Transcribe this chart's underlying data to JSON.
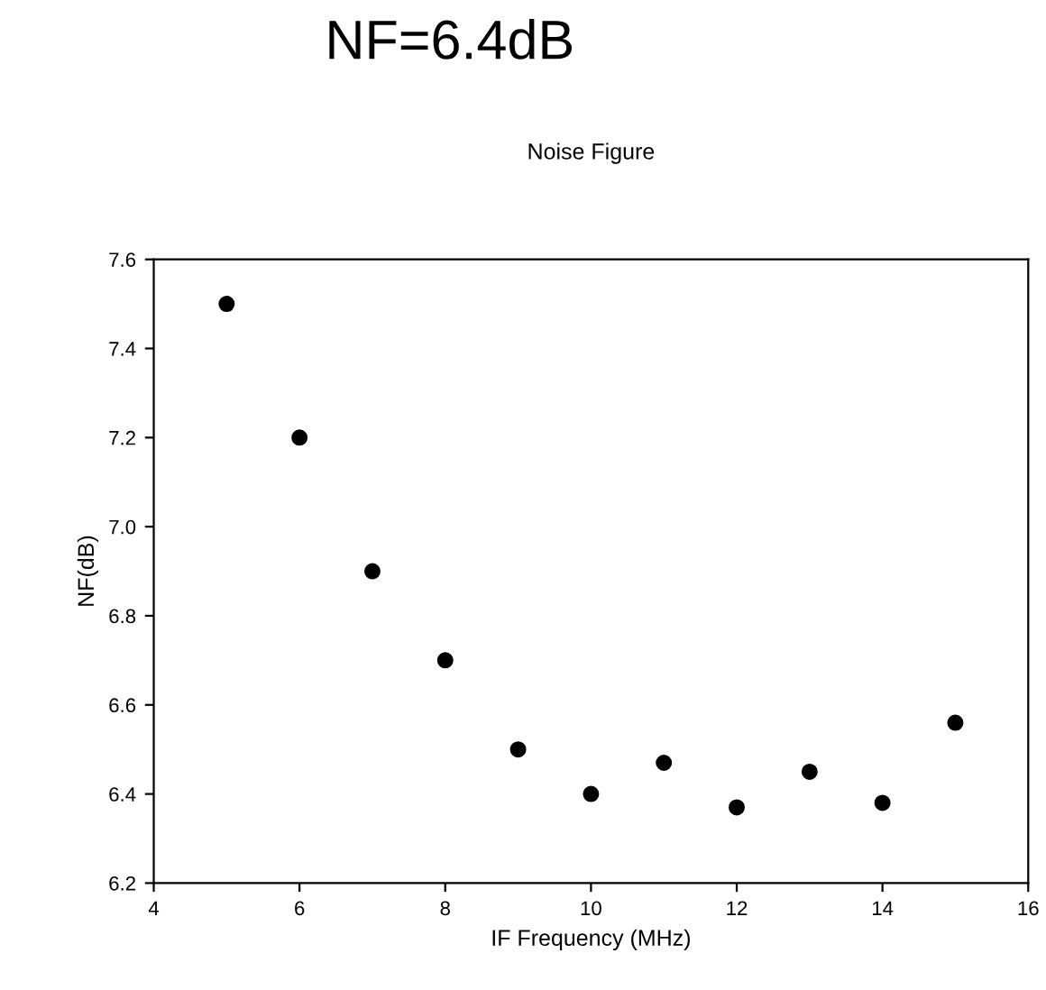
{
  "chart_data": {
    "type": "scatter",
    "title": "Noise Figure",
    "xlabel": "IF Frequency (MHz)",
    "ylabel": "NF(dB)",
    "annotations": [
      "NF=6.4dB"
    ],
    "x": [
      5,
      6,
      7,
      8,
      9,
      10,
      11,
      12,
      13,
      14,
      15
    ],
    "series": [
      {
        "color": "#000000",
        "values": [
          7.5,
          7.2,
          6.9,
          6.7,
          6.5,
          6.4,
          6.47,
          6.37,
          6.45,
          6.38,
          6.56
        ]
      }
    ],
    "xlim": [
      4,
      16
    ],
    "xticks": [
      4,
      6,
      8,
      10,
      12,
      14,
      16
    ],
    "ylim": [
      6.2,
      7.6
    ],
    "yticks": [
      {
        "value": 6.2,
        "label": "6.2"
      },
      {
        "value": 6.4,
        "label": "6.4"
      },
      {
        "value": 6.6,
        "label": "6.6"
      },
      {
        "value": 6.8,
        "label": "6.8"
      },
      {
        "value": 7.0,
        "label": "7.0"
      },
      {
        "value": 7.2,
        "label": "7.2"
      },
      {
        "value": 7.4,
        "label": "7.4"
      },
      {
        "value": 7.6,
        "label": "7.6"
      }
    ],
    "grid": false,
    "legend": false,
    "marker": "circle"
  }
}
